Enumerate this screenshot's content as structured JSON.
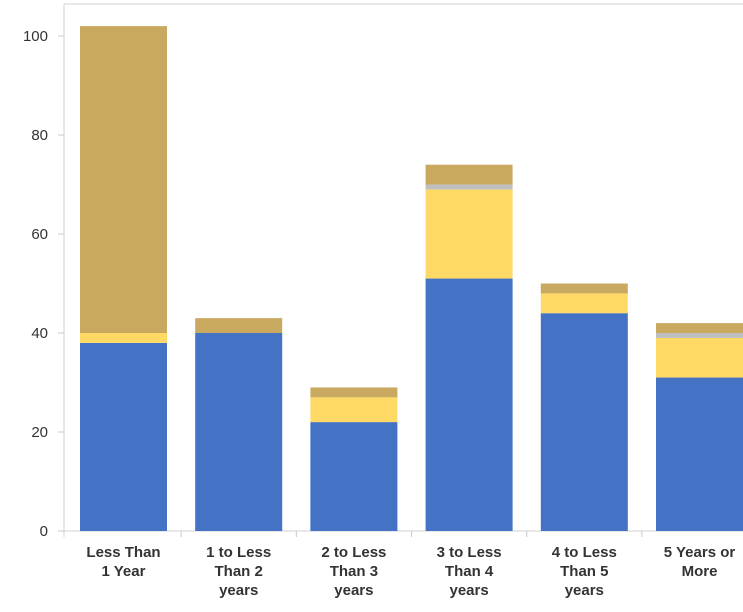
{
  "chart_data": {
    "type": "bar",
    "stacked": true,
    "title": "",
    "xlabel": "",
    "ylabel": "",
    "ylim": [
      0,
      104
    ],
    "yticks": [
      0,
      20,
      40,
      60,
      80,
      100
    ],
    "grid": false,
    "legend": "none",
    "categories": [
      [
        "Less Than",
        "1 Year"
      ],
      [
        "1 to Less",
        "Than 2",
        "years"
      ],
      [
        "2 to Less",
        "Than 3",
        "years"
      ],
      [
        "3 to Less",
        "Than 4",
        "years"
      ],
      [
        "4 to Less",
        "Than 5",
        "years"
      ],
      [
        "5 Years or",
        "More"
      ]
    ],
    "series": [
      {
        "color": "#4472c4",
        "values": [
          38,
          40,
          22,
          51,
          44,
          31
        ]
      },
      {
        "color": "#ffd966",
        "values": [
          2,
          0,
          5,
          18,
          4,
          8
        ]
      },
      {
        "color": "#bfbfbf",
        "values": [
          0,
          0,
          0,
          1,
          0,
          1
        ]
      },
      {
        "color": "#c9a95f",
        "values": [
          62,
          3,
          2,
          4,
          2,
          2
        ]
      }
    ]
  }
}
